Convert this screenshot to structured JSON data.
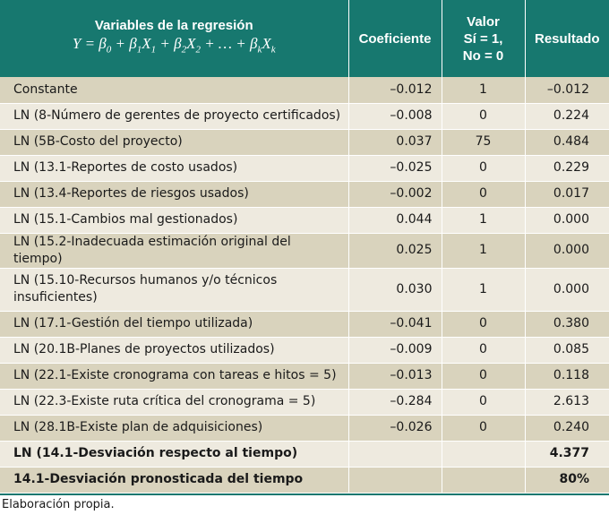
{
  "header": {
    "variables_title": "Variables de la regresión",
    "formula": {
      "lhs": "Y",
      "eq": " = ",
      "beta": "β",
      "x": "X",
      "sub0": "0",
      "sub1": "1",
      "sub2": "2",
      "subk": "k",
      "plus": " + ",
      "dots": " + … + "
    },
    "coeficiente": "Coeficiente",
    "valor_line1": "Valor",
    "valor_line2": "Sí = 1,",
    "valor_line3": "No = 0",
    "resultado": "Resultado"
  },
  "rows": [
    {
      "name": "Constante",
      "coef": "–0.012",
      "value": "1",
      "result": "–0.012"
    },
    {
      "name": "LN (8-Número de gerentes de proyecto certificados)",
      "coef": "–0.008",
      "value": "0",
      "result": "0.224"
    },
    {
      "name": "LN (5B-Costo del proyecto)",
      "coef": "0.037",
      "value": "75",
      "result": "0.484"
    },
    {
      "name": "LN (13.1-Reportes de costo usados)",
      "coef": "–0.025",
      "value": "0",
      "result": "0.229"
    },
    {
      "name": "LN (13.4-Reportes de riesgos usados)",
      "coef": "–0.002",
      "value": "0",
      "result": "0.017"
    },
    {
      "name": "LN (15.1-Cambios mal gestionados)",
      "coef": "0.044",
      "value": "1",
      "result": "0.000"
    },
    {
      "name": "LN (15.2-Inadecuada estimación original del tiempo)",
      "coef": "0.025",
      "value": "1",
      "result": "0.000"
    },
    {
      "name": "LN (15.10-Recursos humanos y/o técnicos insuficientes)",
      "coef": "0.030",
      "value": "1",
      "result": "0.000"
    },
    {
      "name": "LN (17.1-Gestión del tiempo utilizada)",
      "coef": "–0.041",
      "value": "0",
      "result": "0.380"
    },
    {
      "name": "LN (20.1B-Planes de proyectos utilizados)",
      "coef": "–0.009",
      "value": "0",
      "result": "0.085"
    },
    {
      "name": "LN (22.1-Existe cronograma con tareas e hitos = 5)",
      "coef": "–0.013",
      "value": "0",
      "result": "0.118"
    },
    {
      "name": "LN (22.3-Existe ruta crítica del cronograma = 5)",
      "coef": "–0.284",
      "value": "0",
      "result": "2.613"
    },
    {
      "name": "LN (28.1B-Existe plan de adquisiciones)",
      "coef": "–0.026",
      "value": "0",
      "result": "0.240"
    }
  ],
  "summary": [
    {
      "name": "LN (14.1-Desviación respecto al tiempo)",
      "result": "4.377"
    },
    {
      "name": "14.1-Desviación pronosticada del tiempo",
      "result": "80%"
    }
  ],
  "source": "Elaboración propia.",
  "colors": {
    "header_bg": "#17786f",
    "row_dark": "#d9d3bd",
    "row_light": "#eeeadf"
  }
}
